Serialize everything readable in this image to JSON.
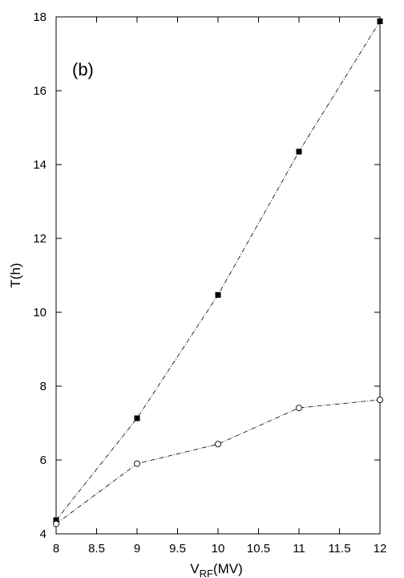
{
  "chart_data": {
    "type": "line",
    "panel_label": "(b)",
    "ylabel": "T(h)",
    "xlabel_main": "V",
    "xlabel_sub": "RF",
    "xlabel_unit": "(MV)",
    "xlim": [
      8,
      12
    ],
    "ylim": [
      4,
      18
    ],
    "x_ticks": [
      "8",
      "8.5",
      "9",
      "9.5",
      "10",
      "10.5",
      "11",
      "11.5",
      "12"
    ],
    "y_ticks": [
      "4",
      "6",
      "8",
      "10",
      "12",
      "14",
      "16",
      "18"
    ],
    "grid": false,
    "series": [
      {
        "marker": "filled-square",
        "line": "dash-dot",
        "x": [
          8,
          9,
          10,
          11,
          12
        ],
        "y": [
          4.37,
          7.13,
          10.47,
          14.35,
          17.88
        ]
      },
      {
        "marker": "open-circle",
        "line": "dash-dot",
        "x": [
          8,
          9,
          10,
          11,
          12
        ],
        "y": [
          4.27,
          5.9,
          6.43,
          7.41,
          7.63
        ]
      }
    ]
  }
}
